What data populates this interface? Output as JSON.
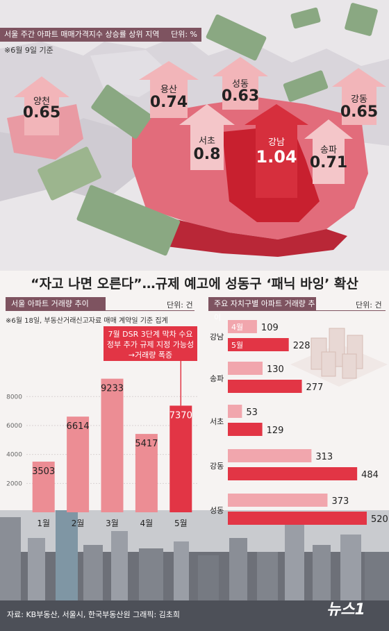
{
  "map": {
    "title": "서울 주간 아파트 매매가격지수 상승률 상위 지역",
    "unit": "단위: %",
    "date_note": "※6월  9일 기준",
    "districts": [
      {
        "name": "양천",
        "value": "0.65"
      },
      {
        "name": "용산",
        "value": "0.74"
      },
      {
        "name": "성동",
        "value": "0.63"
      },
      {
        "name": "강동",
        "value": "0.65"
      },
      {
        "name": "서초",
        "value": "0.8"
      },
      {
        "name": "강남",
        "value": "1.04"
      },
      {
        "name": "송파",
        "value": "0.71"
      }
    ]
  },
  "headline": "“자고 나면 오른다”…규제 예고에 성동구 ‘패닉 바잉’ 확산",
  "left_panel": {
    "title": "서울 아파트 거래량 추이",
    "unit": "단위: 건",
    "note": "※6월 18일, 부동산거래신고자료 매매 계약일 기준 집계",
    "callout": [
      "7월 DSR 3단계 막차 수요",
      "정부 추가 규제 지정 가능성",
      "→거래량 폭증"
    ]
  },
  "right_panel": {
    "title": "주요 자치구별 아파트 거래량 추이",
    "unit": "단위: 건"
  },
  "chart_data": [
    {
      "type": "bar",
      "title": "서울 아파트 거래량 추이",
      "categories": [
        "1월",
        "2월",
        "3월",
        "4월",
        "5월"
      ],
      "values": [
        3503,
        6614,
        9233,
        5417,
        7370
      ],
      "yticks": [
        2000,
        4000,
        6000,
        8000
      ],
      "ylim": [
        0,
        9500
      ],
      "highlight_color": "#e23545",
      "bar_color": "#ec8d94"
    },
    {
      "type": "bar",
      "orientation": "horizontal",
      "title": "주요 자치구별 아파트 거래량 추이",
      "categories": [
        "강남",
        "송파",
        "서초",
        "강동",
        "성동"
      ],
      "series": [
        {
          "name": "4월",
          "values": [
            109,
            130,
            53,
            313,
            373
          ],
          "color": "#f1a6ad"
        },
        {
          "name": "5월",
          "values": [
            228,
            277,
            129,
            484,
            520
          ],
          "color": "#e23545"
        }
      ],
      "xlim": [
        0,
        540
      ]
    }
  ],
  "footer": {
    "source": "자료: KB부동산, 서울시, 한국부동산원    그래픽: 김초희",
    "logo": "뉴스1"
  }
}
